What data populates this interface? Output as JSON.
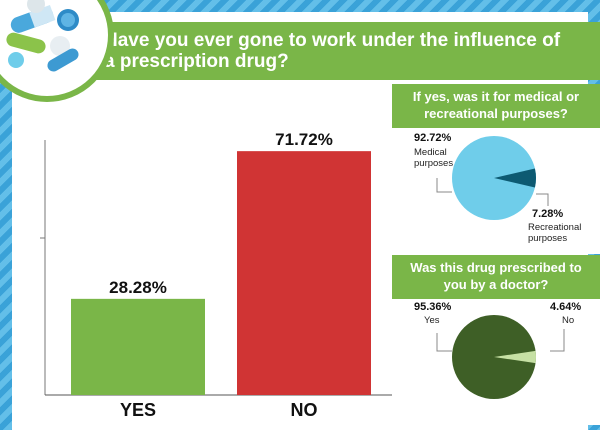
{
  "title": "Have you ever gone to work under the influence of a prescription drug?",
  "colors": {
    "green": "#7ab648",
    "red": "#d03434",
    "blue_stripe": "#3aa2d8",
    "pie1_main": "#6fcdea",
    "pie1_slice": "#0d5a72",
    "pie2_main": "#3e5f26",
    "pie2_slice": "#c6e0a4"
  },
  "icons": {
    "header": "pills-icon"
  },
  "chart_data": [
    {
      "type": "bar",
      "categories": [
        "YES",
        "NO"
      ],
      "values": [
        28.28,
        71.72
      ],
      "value_labels": [
        "28.28%",
        "71.72%"
      ],
      "colors": [
        "#7ab648",
        "#d03434"
      ],
      "ylim": [
        0,
        100
      ]
    },
    {
      "type": "pie",
      "title": "If yes, was it for medical or recreational purposes?",
      "slices": [
        {
          "label": "Medical purposes",
          "value": 92.72,
          "display": "92.72%"
        },
        {
          "label": "Recreational purposes",
          "value": 7.28,
          "display": "7.28%"
        }
      ]
    },
    {
      "type": "pie",
      "title": "Was this drug prescribed to you by a doctor?",
      "slices": [
        {
          "label": "Yes",
          "value": 95.36,
          "display": "95.36%"
        },
        {
          "label": "No",
          "value": 4.64,
          "display": "4.64%"
        }
      ]
    }
  ]
}
